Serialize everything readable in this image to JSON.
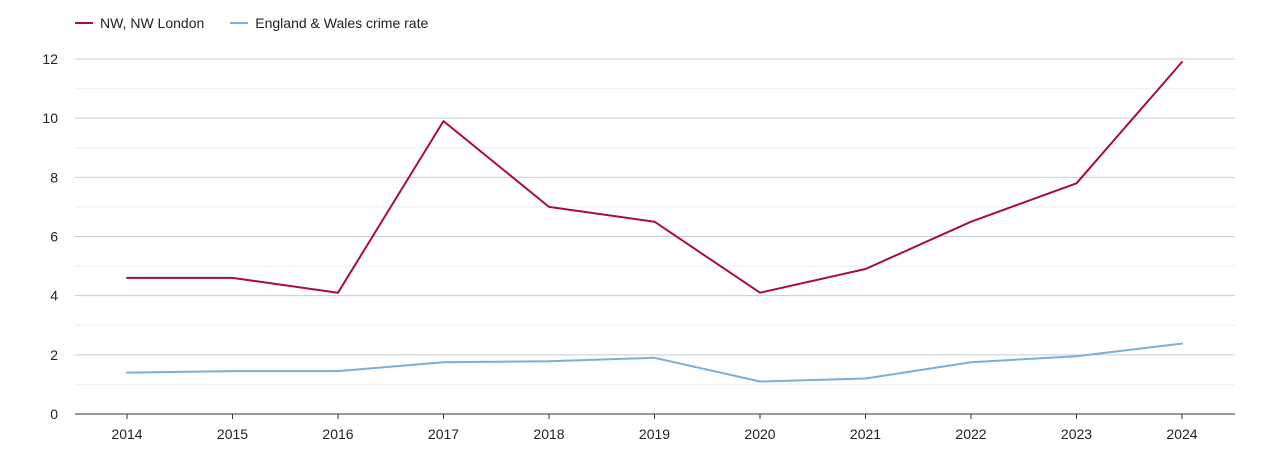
{
  "chart_data": {
    "type": "line",
    "x": [
      "2014",
      "2015",
      "2016",
      "2017",
      "2018",
      "2019",
      "2020",
      "2021",
      "2022",
      "2023",
      "2024"
    ],
    "series": [
      {
        "name": "NW, NW London",
        "color": "#a50f3a",
        "values": [
          4.6,
          4.6,
          4.1,
          9.9,
          7.0,
          6.5,
          4.1,
          4.9,
          6.5,
          7.8,
          11.9
        ]
      },
      {
        "name": "England & Wales crime rate",
        "color": "#7bafd4",
        "values": [
          1.4,
          1.45,
          1.45,
          1.75,
          1.78,
          1.9,
          1.1,
          1.2,
          1.75,
          1.95,
          2.38
        ]
      }
    ],
    "title": "",
    "xlabel": "",
    "ylabel": "",
    "ylim": [
      0,
      12
    ],
    "yticks": [
      "0",
      "2",
      "4",
      "6",
      "8",
      "10",
      "12"
    ],
    "grid": true,
    "legend_position": "top-left"
  }
}
